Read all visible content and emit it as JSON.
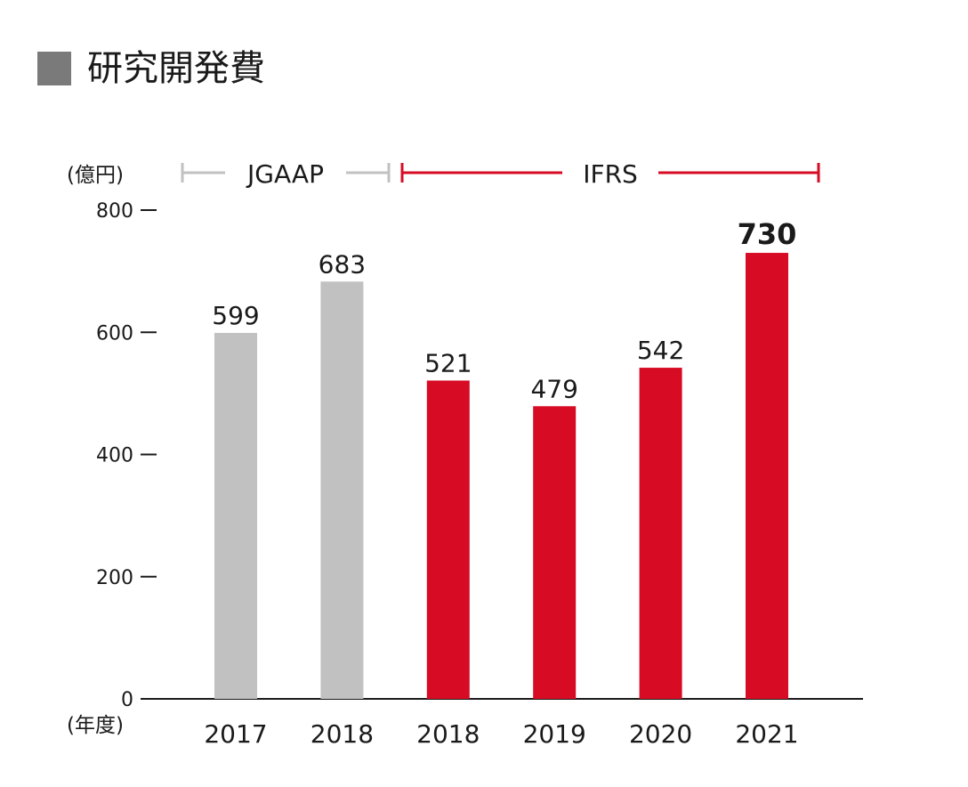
{
  "title": "研究開発費",
  "colors": {
    "jgaap": "#c0c1c0",
    "ifrs": "#d70c24",
    "axis": "#1a1a1a",
    "title_square": "#7a7a7a"
  },
  "chart_data": {
    "type": "bar",
    "title": "研究開発費",
    "ylabel": "(億円)",
    "xlabel": "(年度)",
    "ylim": [
      0,
      800
    ],
    "yticks": [
      0,
      200,
      400,
      600,
      800
    ],
    "categories": [
      "2017",
      "2018",
      "2018",
      "2019",
      "2020",
      "2021"
    ],
    "values": [
      599,
      683,
      521,
      479,
      542,
      730
    ],
    "bar_groups": [
      "JGAAP",
      "JGAAP",
      "IFRS",
      "IFRS",
      "IFRS",
      "IFRS"
    ],
    "standards": [
      {
        "name": "JGAAP",
        "color": "#c0c1c0",
        "from_index": 0,
        "to_index": 1
      },
      {
        "name": "IFRS",
        "color": "#d70c24",
        "from_index": 2,
        "to_index": 5
      }
    ],
    "highlight_index": 5,
    "grid": false
  }
}
